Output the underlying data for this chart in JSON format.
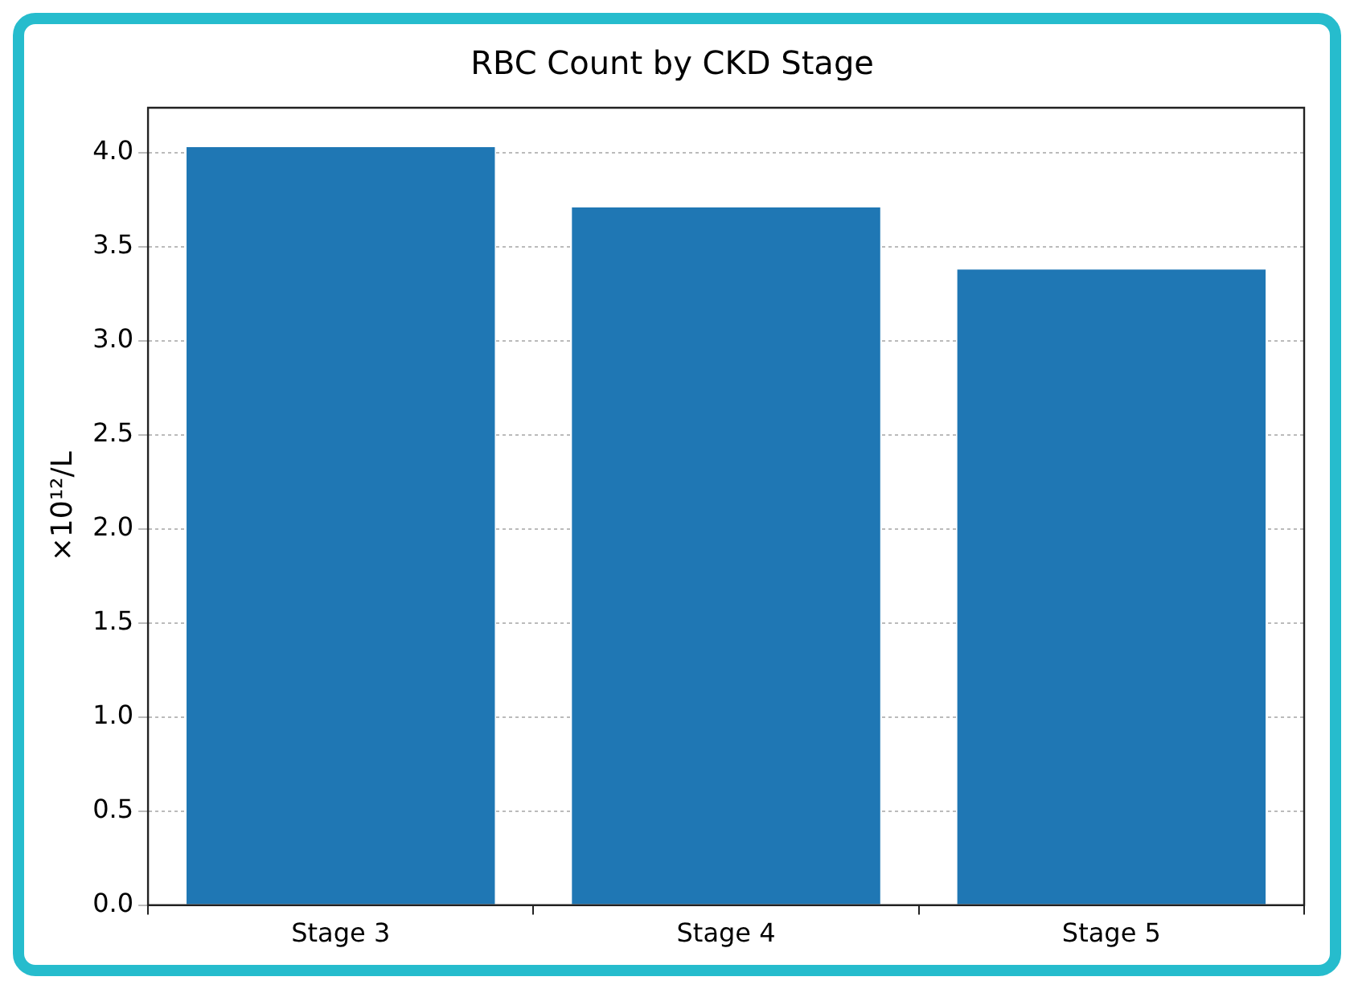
{
  "chart_data": {
    "type": "bar",
    "title": "RBC Count by CKD Stage",
    "ylabel": "×10¹²/L",
    "categories": [
      "Stage 3",
      "Stage 4",
      "Stage 5"
    ],
    "values": [
      4.03,
      3.71,
      3.38
    ],
    "color": "#1f77b4",
    "ylim": [
      0,
      4.24
    ],
    "yticks": [
      {
        "value": 0,
        "label": "0.0"
      },
      {
        "value": 0.5,
        "label": "0.5"
      },
      {
        "value": 1,
        "label": "1.0"
      },
      {
        "value": 1.5,
        "label": "1.5"
      },
      {
        "value": 2,
        "label": "2.0"
      },
      {
        "value": 2.5,
        "label": "2.5"
      },
      {
        "value": 3,
        "label": "3.0"
      },
      {
        "value": 3.5,
        "label": "3.5"
      },
      {
        "value": 4,
        "label": "4.0"
      }
    ],
    "grid": "y",
    "legend": false
  }
}
